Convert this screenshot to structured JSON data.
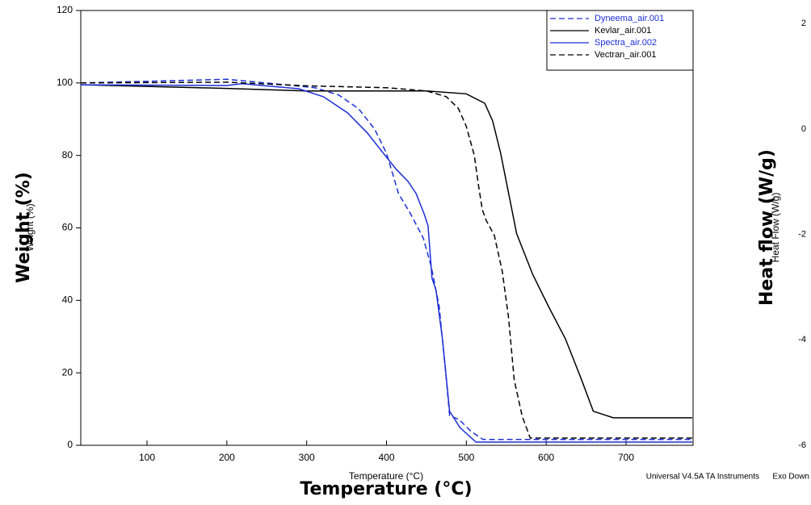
{
  "chart_data": {
    "type": "line",
    "xlabel": "Temperature (°C)",
    "xlabel_large": "Temperature (°C)",
    "ylabel": "Weight (%)",
    "ylabel_large": "Weight (%)",
    "y2label": "Heat Flow (W/g)",
    "y2label_large": "Heat flow (W/g)",
    "footer": "Universal V4.5A TA Instruments",
    "footer_right": "Exo Down",
    "xlim": [
      17,
      784
    ],
    "xticks": [
      100,
      200,
      300,
      400,
      500,
      600,
      700
    ],
    "ylim": [
      0,
      120
    ],
    "yticks": [
      0,
      20,
      40,
      60,
      80,
      100,
      120
    ],
    "y2lim": [
      -6,
      2.25
    ],
    "y2ticks": [
      -6,
      -4,
      -2,
      0,
      2
    ],
    "legend": "upper right",
    "grid": false,
    "series": [
      {
        "name": "Dyneema_air.001",
        "color": "#1c2fd6",
        "line_style": "dashed",
        "x": [
          17,
          200,
          249,
          310,
          340,
          365,
          385,
          400,
          415,
          430,
          446,
          456,
          466,
          474,
          479,
          491,
          506,
          521,
          783
        ],
        "values": [
          100,
          101,
          100,
          98.7,
          96.7,
          92.9,
          87.3,
          80.6,
          69.5,
          63.9,
          57.2,
          49.4,
          38.3,
          20.5,
          8.2,
          7.1,
          3.8,
          1.6,
          1.6
        ]
      },
      {
        "name": "Kevlar_air.001",
        "color": "#000000",
        "line_style": "solid",
        "x": [
          17,
          200,
          300,
          450,
          500,
          523,
          533,
          543,
          553,
          563,
          583,
          603,
          624,
          644,
          659,
          684,
          783
        ],
        "values": [
          99.5,
          98.5,
          97.8,
          97.8,
          97,
          94.4,
          89.5,
          80.6,
          69.5,
          58.4,
          47.2,
          38.3,
          29.4,
          18.3,
          9.4,
          7.6,
          7.6
        ]
      },
      {
        "name": "Spectra_air.002",
        "color": "#1c2fd6",
        "line_style": "solid",
        "x": [
          17,
          200,
          219,
          290,
          321,
          351,
          376,
          396,
          412,
          427,
          437,
          447,
          452,
          457,
          462,
          470,
          479,
          492,
          512,
          783
        ],
        "values": [
          99.5,
          99.3,
          99.8,
          98.4,
          96.2,
          91.8,
          86.2,
          80.6,
          76.2,
          72.8,
          69.5,
          63.9,
          60.6,
          46.1,
          42.8,
          29.4,
          9.4,
          4.9,
          0.9,
          0.9
        ]
      },
      {
        "name": "Vectran_air.001",
        "color": "#000000",
        "line_style": "dashed",
        "x": [
          17,
          200,
          300,
          400,
          450,
          475,
          490,
          500,
          510,
          515,
          520,
          525,
          535,
          545,
          553,
          560,
          570,
          580,
          783
        ],
        "values": [
          100,
          100.2,
          99.2,
          98.7,
          97.8,
          96.2,
          93,
          88,
          80,
          72,
          65,
          62,
          58,
          48,
          35,
          18,
          8,
          2,
          2
        ]
      }
    ]
  }
}
